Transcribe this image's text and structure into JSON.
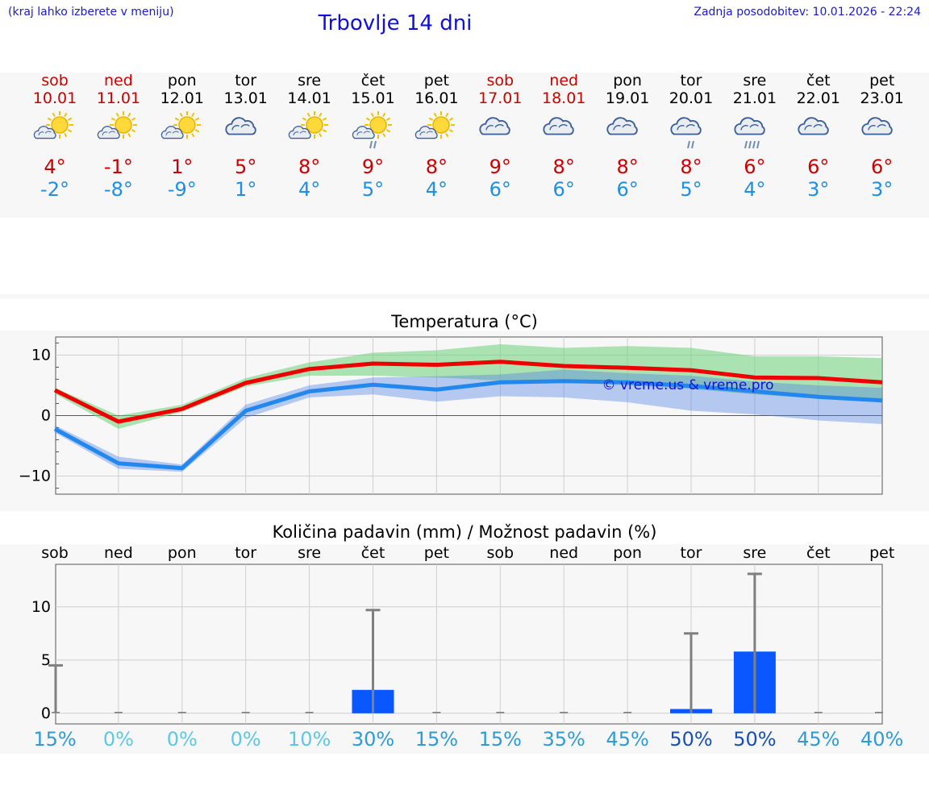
{
  "header": {
    "hint": "(kraj lahko izberete v meniju)",
    "title": "Trbovlje 14 dni",
    "updated": "Zadnja posodobitev: 10.01.2026 - 22:24"
  },
  "colors": {
    "weekend": "#cc0000",
    "weekday": "#000000",
    "tmax": "#cc0000",
    "tmin": "#1e8fe6"
  },
  "days": [
    {
      "name": "sob",
      "date": "10.01",
      "tmax": "4°",
      "tmin": "-2°",
      "weekend": true,
      "icon": "sun-cloud-icon",
      "prob": "15%"
    },
    {
      "name": "ned",
      "date": "11.01",
      "tmax": "-1°",
      "tmin": "-8°",
      "weekend": true,
      "icon": "sun-cloud-icon",
      "prob": "0%"
    },
    {
      "name": "pon",
      "date": "12.01",
      "tmax": "1°",
      "tmin": "-9°",
      "weekend": false,
      "icon": "sun-cloud-icon",
      "prob": "0%"
    },
    {
      "name": "tor",
      "date": "13.01",
      "tmax": "5°",
      "tmin": "1°",
      "weekend": false,
      "icon": "cloudy-icon",
      "prob": "0%"
    },
    {
      "name": "sre",
      "date": "14.01",
      "tmax": "8°",
      "tmin": "4°",
      "weekend": false,
      "icon": "sun-cloud-icon",
      "prob": "10%"
    },
    {
      "name": "čet",
      "date": "15.01",
      "tmax": "9°",
      "tmin": "5°",
      "weekend": false,
      "icon": "sun-cloud-rain-icon",
      "prob": "30%"
    },
    {
      "name": "pet",
      "date": "16.01",
      "tmax": "8°",
      "tmin": "4°",
      "weekend": false,
      "icon": "sun-cloud-icon",
      "prob": "15%"
    },
    {
      "name": "sob",
      "date": "17.01",
      "tmax": "9°",
      "tmin": "6°",
      "weekend": true,
      "icon": "cloudy-icon",
      "prob": "15%"
    },
    {
      "name": "ned",
      "date": "18.01",
      "tmax": "8°",
      "tmin": "6°",
      "weekend": true,
      "icon": "cloudy-icon",
      "prob": "35%"
    },
    {
      "name": "pon",
      "date": "19.01",
      "tmax": "8°",
      "tmin": "6°",
      "weekend": false,
      "icon": "cloudy-icon",
      "prob": "45%"
    },
    {
      "name": "tor",
      "date": "20.01",
      "tmax": "8°",
      "tmin": "5°",
      "weekend": false,
      "icon": "cloudy-rain-icon",
      "prob": "50%"
    },
    {
      "name": "sre",
      "date": "21.01",
      "tmax": "6°",
      "tmin": "4°",
      "weekend": false,
      "icon": "cloudy-heavy-rain-icon",
      "prob": "50%"
    },
    {
      "name": "čet",
      "date": "22.01",
      "tmax": "6°",
      "tmin": "3°",
      "weekend": false,
      "icon": "cloudy-icon",
      "prob": "45%"
    },
    {
      "name": "pet",
      "date": "23.01",
      "tmax": "6°",
      "tmin": "3°",
      "weekend": false,
      "icon": "cloudy-icon",
      "prob": "40%"
    }
  ],
  "chart_data": [
    {
      "type": "line",
      "title": "Temperatura (°C)",
      "watermark": "© vreme.us & vreme.pro",
      "ylim": [
        -13,
        13
      ],
      "yticks": [
        -10,
        0,
        10
      ],
      "x": [
        0,
        1,
        2,
        3,
        4,
        5,
        6,
        7,
        8,
        9,
        10,
        11,
        12,
        13
      ],
      "series": [
        {
          "name": "tmax",
          "color": "#ee0000",
          "values": [
            4.2,
            -1,
            1.1,
            5.4,
            7.7,
            8.6,
            8.4,
            8.9,
            8.2,
            7.9,
            7.5,
            6.3,
            6.2,
            5.5
          ],
          "band_low": [
            3.6,
            -2.2,
            0.6,
            4.8,
            6.6,
            6.6,
            6.3,
            5.8,
            5.6,
            5.0,
            4.4,
            3.5,
            2.8,
            2.2
          ],
          "band_high": [
            4.6,
            0.0,
            1.8,
            6.2,
            8.8,
            10.4,
            10.8,
            11.8,
            11.2,
            11.5,
            11.2,
            9.8,
            9.8,
            9.5
          ]
        },
        {
          "name": "tmin",
          "color": "#2288ee",
          "values": [
            -2.2,
            -7.9,
            -8.7,
            0.8,
            4.0,
            5.1,
            4.3,
            5.5,
            5.7,
            5.5,
            4.9,
            4.0,
            3.1,
            2.5
          ],
          "band_low": [
            -2.8,
            -8.8,
            -9.3,
            -0.4,
            3.0,
            3.5,
            2.3,
            3.2,
            3.0,
            2.2,
            0.8,
            0.2,
            -0.8,
            -1.4
          ],
          "band_high": [
            -1.6,
            -6.8,
            -8.1,
            1.8,
            5.0,
            6.3,
            6.5,
            6.8,
            7.6,
            7.0,
            6.6,
            5.6,
            5.0,
            4.6
          ]
        }
      ]
    },
    {
      "type": "bar",
      "title": "Količina padavin (mm) / Možnost padavin (%)",
      "ylim": [
        -1,
        14
      ],
      "yticks": [
        0,
        5,
        10
      ],
      "categories": [
        "sob",
        "ned",
        "pon",
        "tor",
        "sre",
        "čet",
        "pet",
        "sob",
        "ned",
        "pon",
        "tor",
        "sre",
        "čet",
        "pet"
      ],
      "values": [
        0,
        0,
        0,
        0,
        0,
        2.2,
        0,
        0,
        0,
        0,
        0.4,
        5.8,
        0,
        0
      ],
      "error_high": [
        4.5,
        0,
        0,
        0,
        0,
        9.7,
        0,
        0,
        0,
        0,
        7.5,
        13.1,
        0,
        0
      ]
    }
  ]
}
